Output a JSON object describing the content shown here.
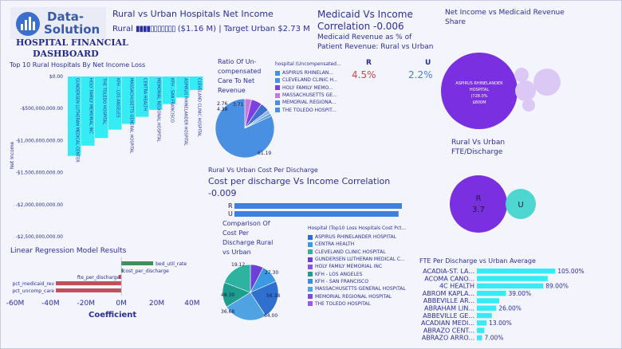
{
  "brand": {
    "logo_text_line1": "Data-",
    "logo_text_line2": "Solution",
    "subtitle_line1": "HOSPITAL FINANCIAL",
    "subtitle_line2": "DASHBOARD"
  },
  "kpi": {
    "title": "Rural vs Urban Hospitals Net Income",
    "rural_label": "Rural",
    "rural_glyphs": "▮▮▮▮▯▯▯▯▯▯▯",
    "rural_value": "($1.16 M)",
    "separator": "|",
    "target_text": "Target Urban $2.73 M"
  },
  "medicaid": {
    "title_line1": "Medicaid Vs Income",
    "title_line2": "Correlation -0.006",
    "sub_line1": "Medicaid Revenue as % of",
    "sub_line2": "Patient Revenue: Rural vs Urban",
    "rural_label": "R",
    "urban_label": "U",
    "rural_value": "4.5%",
    "urban_value": "2.2%"
  },
  "share": {
    "title_line1": "Net Income vs Medicaid Revenue",
    "title_line2": "Share",
    "big_label_1": "ASPIRUS RHINELANDER",
    "big_label_2": "HOSPITAL",
    "big_label_3": "(728.0%",
    "big_label_4": "$800M"
  },
  "fte_bubbles": {
    "title_line1": "Rural Vs Urban",
    "title_line2": "FTE/Discharge",
    "rural_label": "R",
    "rural_value": "3.7",
    "urban_label": "U"
  },
  "top10": {
    "title": "Top 10 Rural Hospitals By Net Income Loss",
    "y_axis_label": "Net Income",
    "y_ticks": [
      "$0.00",
      "-$500,000,000.00",
      "-$1,000,000,000.00",
      "-$1,500,000,000.00",
      "-$2,000,000,000.00",
      "-$2,500,000,000.00"
    ],
    "bar_color": "#35ecf4"
  },
  "pie1": {
    "title_line1": "Ratio Of Un-",
    "title_line2": "compensated",
    "title_line3": "Care To Net",
    "title_line4": "Revenue",
    "legend_title": "hospital (Uncompensated...",
    "legend_items": [
      {
        "label": "ASPIRUS RHINELAN...",
        "color": "#4a90e2"
      },
      {
        "label": "CLEVELAND CLINIC H...",
        "color": "#4a90e2"
      },
      {
        "label": "HOLY FAMILY MEMO...",
        "color": "#7b3fe4"
      },
      {
        "label": "MASSACHUSETTS GE...",
        "color": "#c678dd"
      },
      {
        "label": "MEMORIAL REGIONA...",
        "color": "#4a90e2"
      },
      {
        "label": "THE TOLEDO HOSPIT...",
        "color": "#4a90e2"
      }
    ],
    "slice_labels": [
      "2.76",
      "4.38",
      "3.71",
      "61.19"
    ]
  },
  "cost_discharge": {
    "title": "Rural Vs Urban Cost Per Discharge",
    "subtitle_line1": "Cost per discharge Vs Income Correlation",
    "subtitle_line2": "-0.009",
    "rural_label": "R",
    "urban_label": "U"
  },
  "regression": {
    "title": "Linear Regression Model Results",
    "x_label": "Coefficient",
    "x_ticks": [
      "-60M",
      "-40M",
      "-20M",
      "0M",
      "20M",
      "40M"
    ],
    "bar_labels": [
      "bed_util_rate",
      "cost_per_discharge",
      "fte_per_discharge",
      "pct_medicaid_rev",
      "pct_uncomp_care"
    ]
  },
  "pie2": {
    "title_line1": "Comparison Of",
    "title_line2": "Cost Per",
    "title_line3": "Discharge Rural",
    "title_line4": "vs Urban",
    "slice_labels": [
      "19.12",
      "27.30",
      "48.30",
      "56.38",
      "36.68",
      "64.00"
    ],
    "legend_title": "Hospital (Top10 Loss Hospitals Cost Pct...",
    "legend_items": [
      {
        "label": "ASPIRUS RHINELANDER HOSPITAL",
        "color": "#2f6fce"
      },
      {
        "label": "CENTRA HEALTH",
        "color": "#3b9ae1"
      },
      {
        "label": "CLEVELAND CLINIC HOSPITAL",
        "color": "#2db3a0"
      },
      {
        "label": "GUNDERSEN LUTHERAN MEDICAL C...",
        "color": "#6c3fd8"
      },
      {
        "label": "HOLY FAMILY MEMORIAL INC",
        "color": "#8a55e6"
      },
      {
        "label": "KFH - LOS ANGELES",
        "color": "#1e9c8e"
      },
      {
        "label": "KFH - SAN FRANCISCO",
        "color": "#3a8fd8"
      },
      {
        "label": "MASSACHUSETTS GENERAL HOSPITAL",
        "color": "#4fa3e3"
      },
      {
        "label": "MEMORIAL REGIONAL HOSPITAL",
        "color": "#7a4be0"
      },
      {
        "label": "THE TOLEDO HOSPITAL",
        "color": "#9b59e8"
      }
    ]
  },
  "fte_avg": {
    "title": "FTE Per Discharge vs Urban Average"
  },
  "chart_data": [
    {
      "type": "bar",
      "title": "Top 10 Rural Hospitals By Net Income Loss",
      "ylabel": "Net Income",
      "ylim": [
        -2500000000,
        0
      ],
      "categories": [
        "GUNDERSEN LUTHERAN MEDICAL CENTER",
        "HOLY FAMILY MEMORIAL INC",
        "THE TOLEDO HOSPITAL",
        "KFH - LOS ANGELES",
        "MASSACHUSETTS GENERAL HOSPITAL",
        "CENTRA HEALTH",
        "MEMORIAL REGIONAL HOSPITAL",
        "KFH - SAN FRANCISCO",
        "ASPIRUS RHINELANDER HOSPITAL",
        "CLEVELAND CLINIC HOSPITAL"
      ],
      "values": [
        -1240000000,
        -1080000000,
        -960000000,
        -830000000,
        -740000000,
        -630000000,
        -520000000,
        -430000000,
        -330000000,
        -210000000
      ]
    },
    {
      "type": "pie",
      "title": "Ratio Of Un-compensated Care To Net Revenue",
      "values": [
        61.19,
        2.76,
        4.38,
        3.71,
        1.5,
        1.2
      ],
      "colors": [
        "#4a90e2",
        "#c678dd",
        "#7b3fe4",
        "#3f6fd0",
        "#8ab4f0",
        "#5aa0ea"
      ]
    },
    {
      "type": "bar",
      "title": "Rural Vs Urban Cost Per Discharge",
      "categories": [
        "R",
        "U"
      ],
      "values": [
        100,
        98
      ],
      "xlim": [
        0,
        100
      ]
    },
    {
      "type": "bar",
      "title": "Linear Regression Model Results",
      "xlabel": "Coefficient",
      "xlim": [
        -60000000,
        45000000
      ],
      "categories": [
        "bed_util_rate",
        "cost_per_discharge",
        "fte_per_discharge",
        "pct_medicaid_rev",
        "pct_uncomp_care"
      ],
      "values": [
        18000000,
        1000000,
        -1500000,
        -37000000,
        -37000000
      ],
      "colors": [
        "#3e8f5b",
        "#3e8f5b",
        "#c0505a",
        "#c0505a",
        "#c0505a"
      ]
    },
    {
      "type": "pie",
      "title": "Comparison Of Cost Per Discharge Rural vs Urban",
      "values": [
        19.12,
        27.3,
        56.38,
        64.0,
        36.68,
        48.3
      ],
      "colors": [
        "#6c3fd8",
        "#3b9ae1",
        "#2f6fce",
        "#4fa3e3",
        "#1e9c8e",
        "#2db3a0"
      ]
    },
    {
      "type": "bar",
      "title": "FTE Per Discharge vs Urban Average",
      "categories": [
        "ACADIA-ST. LA...",
        "ACOMA CANO...",
        "4C HEALTH",
        "ABROM KAPLA...",
        "ABBEVILLE AR...",
        "ABRAHAM LIN...",
        "ABBEVILLE GE...",
        "ACADIAN MEDI...",
        "ABRAZO CENT...",
        "ABRAZO ARRO..."
      ],
      "values": [
        105,
        95,
        89,
        39,
        30,
        26,
        20,
        13,
        10,
        7
      ],
      "value_labels": [
        "105.00%",
        "",
        "89.00%",
        "39.00%",
        "",
        "26.00%",
        "",
        "13.00%",
        "",
        "7.00%"
      ],
      "xlim": [
        0,
        110
      ]
    }
  ]
}
